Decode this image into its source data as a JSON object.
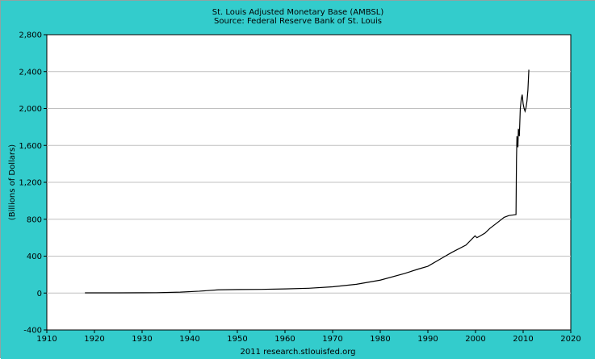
{
  "colors": {
    "background": "#33CCCC",
    "plot_bg": "#FFFFFF",
    "grid": "#C0C0C0",
    "line": "#000000"
  },
  "chart_data": {
    "type": "line",
    "title": "St. Louis Adjusted Monetary Base (AMBSL)",
    "subtitle": "Source: Federal Reserve Bank of St. Louis",
    "xlabel": "",
    "ylabel": "(Billions of Dollars)",
    "footer": "2011 research.stlouisfed.org",
    "xlim": [
      1910,
      2020
    ],
    "ylim": [
      -400,
      2800
    ],
    "xticks": [
      "1910",
      "1920",
      "1930",
      "1940",
      "1950",
      "1960",
      "1970",
      "1980",
      "1990",
      "2000",
      "2010",
      "2020"
    ],
    "yticks": [
      "2,800",
      "2,400",
      "2,000",
      "1,600",
      "1,200",
      "800",
      "400",
      "0",
      "-400"
    ],
    "grid": "horizontal",
    "series": [
      {
        "x": [
          1918,
          1925,
          1930,
          1933,
          1938,
          1942,
          1946,
          1950,
          1955,
          1960,
          1965,
          1970,
          1975,
          1980,
          1985,
          1988,
          1990,
          1993,
          1995,
          1998,
          1999.9,
          2000.3,
          2001,
          2002,
          2003,
          2005,
          2006,
          2007,
          2008.5,
          2008.6,
          2008.7,
          2008.9,
          2009.0,
          2009.2,
          2009.4,
          2009.6,
          2009.8,
          2010.0,
          2010.2,
          2010.4,
          2010.6,
          2010.8,
          2011.0,
          2011.2
        ],
        "y": [
          2,
          2,
          3,
          4,
          10,
          20,
          35,
          38,
          40,
          45,
          52,
          68,
          95,
          140,
          210,
          260,
          290,
          380,
          440,
          520,
          620,
          600,
          620,
          650,
          700,
          780,
          820,
          840,
          850,
          1450,
          1700,
          1580,
          1780,
          1700,
          2000,
          2100,
          2150,
          2050,
          2000,
          1970,
          2010,
          2080,
          2200,
          2420
        ]
      }
    ]
  }
}
